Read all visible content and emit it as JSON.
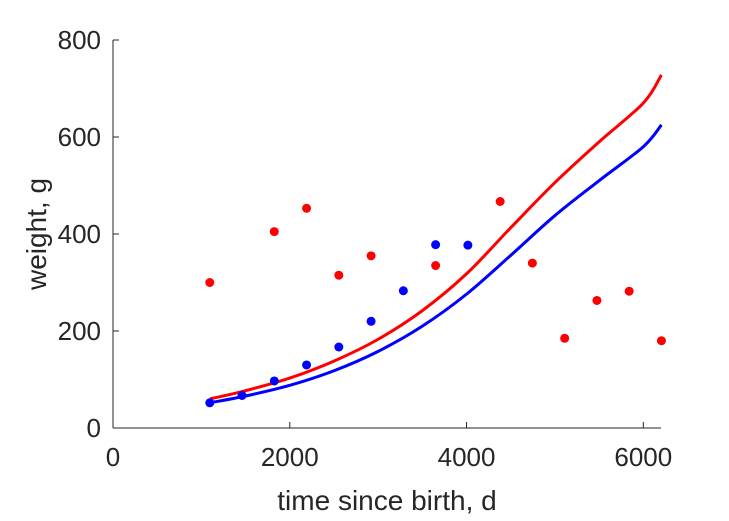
{
  "chart_data": {
    "type": "scatter",
    "title": "",
    "xlabel": "time since birth, d",
    "ylabel": "weight, g",
    "xlim": [
      0,
      6200
    ],
    "ylim": [
      0,
      800
    ],
    "xticks": [
      0,
      2000,
      4000,
      6000
    ],
    "yticks": [
      0,
      200,
      400,
      600,
      800
    ],
    "xtick_labels": [
      "0",
      "2000",
      "4000",
      "6000"
    ],
    "ytick_labels": [
      "0",
      "200",
      "400",
      "600",
      "800"
    ],
    "grid": false,
    "legend": "none",
    "series": [
      {
        "kind": "points",
        "color": "#ff0000",
        "x": [
          1095,
          1825,
          2190,
          2555,
          2920,
          3650,
          4380,
          4745,
          5110,
          5475,
          5840,
          6205
        ],
        "y": [
          300,
          405,
          453,
          315,
          355,
          335,
          467,
          340,
          185,
          263,
          282,
          180
        ]
      },
      {
        "kind": "points",
        "color": "#0000ff",
        "x": [
          1095,
          1460,
          1825,
          2190,
          2555,
          2920,
          3285,
          3650,
          4015
        ],
        "y": [
          52,
          67,
          97,
          130,
          167,
          220,
          283,
          378,
          377
        ]
      },
      {
        "kind": "line",
        "color": "#ff0000",
        "x": [
          1095,
          1500,
          2000,
          2500,
          3000,
          3500,
          4000,
          4500,
          5000,
          5500,
          6000,
          6205
        ],
        "y": [
          60,
          77,
          103,
          138,
          183,
          242,
          318,
          413,
          506,
          590,
          670,
          728
        ]
      },
      {
        "kind": "line",
        "color": "#0000ff",
        "x": [
          1095,
          1500,
          2000,
          2500,
          3000,
          3500,
          4000,
          4500,
          5000,
          5500,
          6000,
          6205
        ],
        "y": [
          52,
          66,
          88,
          118,
          158,
          210,
          276,
          356,
          438,
          510,
          580,
          625
        ]
      }
    ]
  }
}
